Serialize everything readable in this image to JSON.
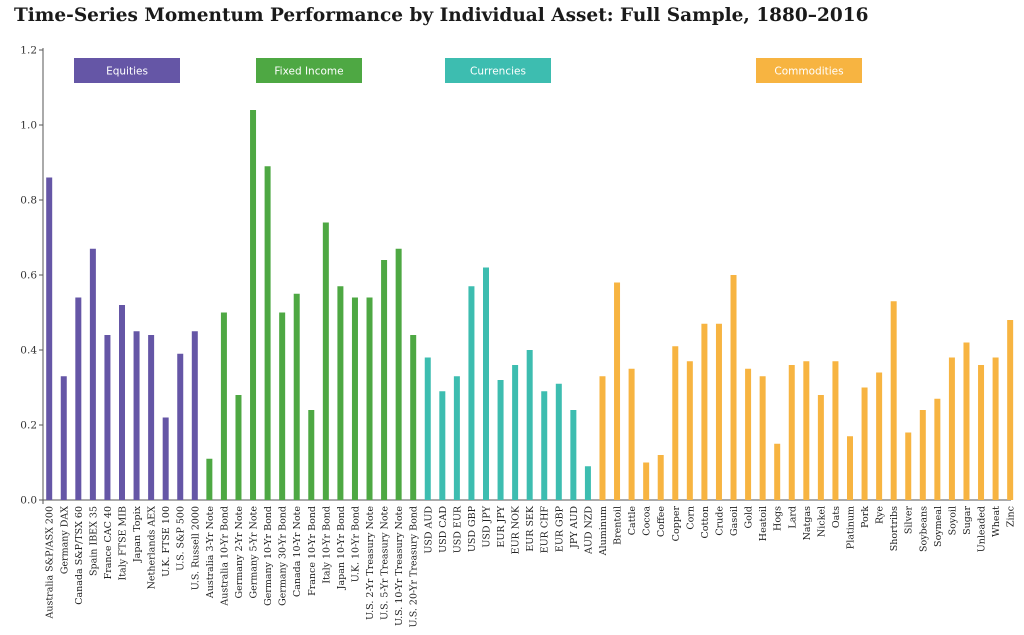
{
  "title": "Time-Series Momentum Performance by Individual Asset: Full Sample, 1880–2016",
  "chart_data": {
    "type": "bar",
    "title": "Time-Series Momentum Performance by Individual Asset: Full Sample, 1880–2016",
    "xlabel": "",
    "ylabel": "",
    "ylim": [
      0,
      1.2
    ],
    "yticks": [
      "0.0",
      "0.2",
      "0.4",
      "0.6",
      "0.8",
      "1.0",
      "1.2"
    ],
    "grid": false,
    "legend_placement": "top",
    "groups": [
      {
        "name": "Equities",
        "color": "#6556a6"
      },
      {
        "name": "Fixed Income",
        "color": "#4ea843"
      },
      {
        "name": "Currencies",
        "color": "#3dbdb0"
      },
      {
        "name": "Commodities",
        "color": "#f7b441"
      }
    ],
    "series": [
      {
        "name": "Equities",
        "color": "#6556a6",
        "categories": [
          "Australia S&P/ASX 200",
          "Germany DAX",
          "Canada S&P/TSX 60",
          "Spain IBEX 35",
          "France CAC 40",
          "Italy FTSE MIB",
          "Japan Topix",
          "Netherlands AEX",
          "U.K. FTSE 100",
          "U.S. S&P 500",
          "U.S. Russell 2000"
        ],
        "values": [
          0.86,
          0.33,
          0.54,
          0.67,
          0.44,
          0.52,
          0.45,
          0.44,
          0.22,
          0.39,
          0.45
        ]
      },
      {
        "name": "Fixed Income",
        "color": "#4ea843",
        "categories": [
          "Australia 3-Yr Note",
          "Australia 10-Yr Bond",
          "Germany 2-Yr Note",
          "Germany 5-Yr Note",
          "Germany 10-Yr Bond",
          "Germany 30-Yr Bond",
          "Canada 10-Yr Note",
          "France 10-Yr Bond",
          "Italy 10-Yr Bond",
          "Japan 10-Yr Bond",
          "U.K. 10-Yr Bond",
          "U.S. 2-Yr Treasury Note",
          "U.S. 5-Yr Treasury Note",
          "U.S. 10-Yr Treasury Note",
          "U.S. 20-Yr Treasury Bond"
        ],
        "values": [
          0.11,
          0.5,
          0.28,
          1.04,
          0.89,
          0.5,
          0.55,
          0.24,
          0.74,
          0.57,
          0.54,
          0.54,
          0.64,
          0.67,
          0.44
        ]
      },
      {
        "name": "Currencies",
        "color": "#3dbdb0",
        "categories": [
          "USD AUD",
          "USD CAD",
          "USD EUR",
          "USD GBP",
          "USD JPY",
          "EUR JPY",
          "EUR NOK",
          "EUR SEK",
          "EUR CHF",
          "EUR GBP",
          "JPY AUD",
          "AUD NZD"
        ],
        "values": [
          0.38,
          0.29,
          0.33,
          0.57,
          0.62,
          0.32,
          0.36,
          0.4,
          0.29,
          0.31,
          0.24,
          0.09
        ]
      },
      {
        "name": "Commodities",
        "color": "#f7b441",
        "categories": [
          "Aluminum",
          "Brentoil",
          "Cattle",
          "Cocoa",
          "Coffee",
          "Copper",
          "Corn",
          "Cotton",
          "Crude",
          "Gasoil",
          "Gold",
          "Heatoil",
          "Hogs",
          "Lard",
          "Natgas",
          "Nickel",
          "Oats",
          "Platinum",
          "Pork",
          "Rye",
          "Shortribs",
          "Silver",
          "Soybeans",
          "Soymeal",
          "Soyoil",
          "Sugar",
          "Unleaded",
          "Wheat",
          "Zinc"
        ],
        "values": [
          0.33,
          0.58,
          0.35,
          0.1,
          0.12,
          0.41,
          0.37,
          0.47,
          0.47,
          0.6,
          0.35,
          0.33,
          0.15,
          0.36,
          0.37,
          0.28,
          0.37,
          0.17,
          0.3,
          0.34,
          0.53,
          0.18,
          0.24,
          0.27,
          0.38,
          0.42,
          0.36,
          0.38,
          0.48
        ]
      }
    ]
  }
}
